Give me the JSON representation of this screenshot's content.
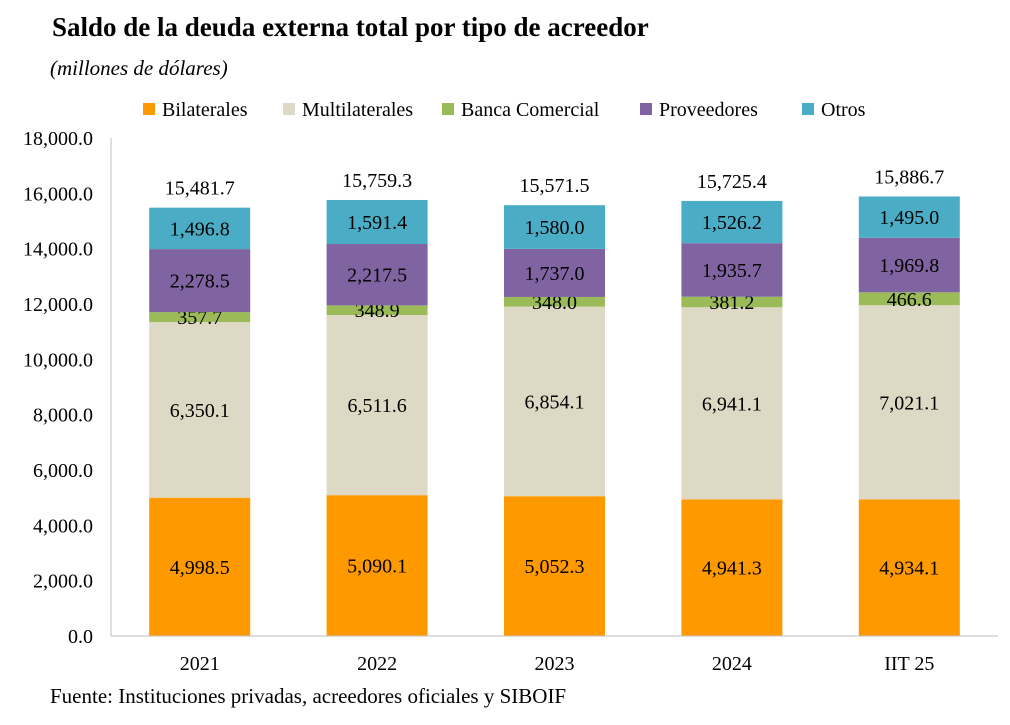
{
  "title": "Saldo de la deuda externa total por tipo de acreedor",
  "subtitle": "(millones de dólares)",
  "source": "Fuente: Instituciones privadas, acreedores oficiales y SIBOIF",
  "chart_data": {
    "type": "bar",
    "stacked": true,
    "categories": [
      "2021",
      "2022",
      "2023",
      "2024",
      "IIT 25"
    ],
    "series": [
      {
        "name": "Bilaterales",
        "color": "#FF9900",
        "values": [
          4998.5,
          5090.1,
          5052.3,
          4941.3,
          4934.1
        ],
        "labels": [
          "4,998.5",
          "5,090.1",
          "5,052.3",
          "4,941.3",
          "4,934.1"
        ]
      },
      {
        "name": "Multilaterales",
        "color": "#DDD9C4",
        "values": [
          6350.1,
          6511.6,
          6854.1,
          6941.1,
          7021.1
        ],
        "labels": [
          "6,350.1",
          "6,511.6",
          "6,854.1",
          "6,941.1",
          "7,021.1"
        ]
      },
      {
        "name": "Banca Comercial",
        "color": "#9BBB59",
        "values": [
          357.7,
          348.9,
          348.0,
          381.2,
          466.6
        ],
        "labels": [
          "357.7",
          "348.9",
          "348.0",
          "381.2",
          "466.6"
        ]
      },
      {
        "name": "Proveedores",
        "color": "#8064A2",
        "values": [
          2278.5,
          2217.5,
          1737.0,
          1935.7,
          1969.8
        ],
        "labels": [
          "2,278.5",
          "2,217.5",
          "1,737.0",
          "1,935.7",
          "1,969.8"
        ]
      },
      {
        "name": "Otros",
        "color": "#4BACC6",
        "values": [
          1496.8,
          1591.4,
          1580.0,
          1526.2,
          1495.0
        ],
        "labels": [
          "1,496.8",
          "1,591.4",
          "1,580.0",
          "1,526.2",
          "1,495.0"
        ]
      }
    ],
    "totals": [
      15481.7,
      15759.3,
      15571.5,
      15725.4,
      15886.7
    ],
    "total_labels": [
      "15,481.7",
      "15,759.3",
      "15,571.5",
      "15,725.4",
      "15,886.7"
    ],
    "ylim": [
      0,
      18000
    ],
    "yticks": [
      0,
      2000,
      4000,
      6000,
      8000,
      10000,
      12000,
      14000,
      16000,
      18000
    ],
    "ytick_labels": [
      "0.0",
      "2,000.0",
      "4,000.0",
      "6,000.0",
      "8,000.0",
      "10,000.0",
      "12,000.0",
      "14,000.0",
      "16,000.0",
      "18,000.0"
    ],
    "grid": false,
    "legend": "top"
  }
}
